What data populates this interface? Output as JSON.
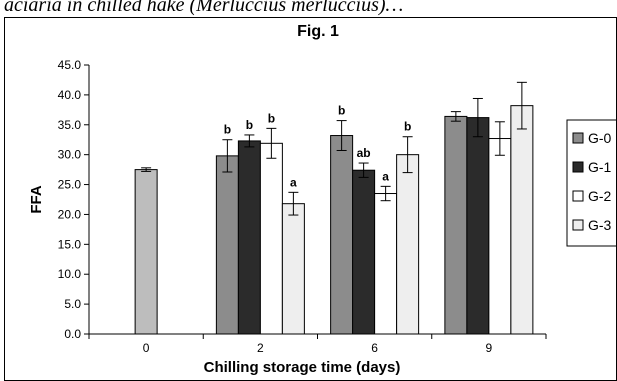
{
  "caption": "aciaria in chilled hake (Merluccius merluccius)…",
  "chart_data": {
    "type": "bar",
    "title": "Fig. 1",
    "xlabel": "Chilling storage time (days)",
    "ylabel": "FFA",
    "ylim": [
      0,
      45
    ],
    "yticks": [
      "0.0",
      "5.0",
      "10.0",
      "15.0",
      "20.0",
      "25.0",
      "30.0",
      "35.0",
      "40.0",
      "45.0"
    ],
    "categories": [
      "0",
      "2",
      "6",
      "9"
    ],
    "legend_position": "right",
    "series": [
      {
        "name": "G-0",
        "color": "#8c8c8c",
        "values": [
          null,
          29.8,
          33.2,
          36.4
        ],
        "errors": [
          null,
          2.7,
          2.5,
          0.8
        ],
        "labels": [
          null,
          "b",
          "b",
          null
        ]
      },
      {
        "name": "G-1",
        "color": "#2b2b2b",
        "values": [
          null,
          32.3,
          27.4,
          36.2
        ],
        "errors": [
          null,
          1.0,
          1.2,
          3.2
        ],
        "labels": [
          null,
          "b",
          "ab",
          null
        ]
      },
      {
        "name": "G-2",
        "color": "#ffffff",
        "values": [
          null,
          31.9,
          23.5,
          32.7
        ],
        "errors": [
          null,
          2.5,
          1.2,
          2.8
        ],
        "labels": [
          null,
          "b",
          "a",
          null
        ]
      },
      {
        "name": "G-3",
        "color": "#eeeeee",
        "values": [
          null,
          21.8,
          30.0,
          38.2
        ],
        "errors": [
          null,
          1.9,
          3.0,
          3.9
        ],
        "labels": [
          null,
          "a",
          "b",
          null
        ]
      }
    ],
    "baseline": {
      "category": "0",
      "value": 27.5,
      "error": 0.3,
      "color": "#bdbdbd"
    }
  }
}
